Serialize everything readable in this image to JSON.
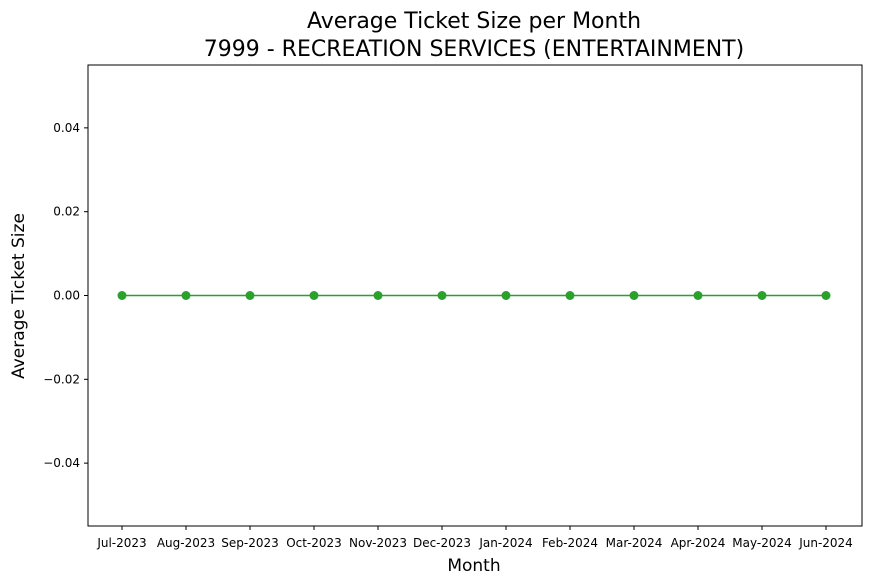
{
  "chart_data": {
    "type": "line",
    "title": "Average Ticket Size per Month",
    "subtitle": "7999 - RECREATION SERVICES (ENTERTAINMENT)",
    "xlabel": "Month",
    "ylabel": "Average Ticket Size",
    "categories": [
      "Jul-2023",
      "Aug-2023",
      "Sep-2023",
      "Oct-2023",
      "Nov-2023",
      "Dec-2023",
      "Jan-2024",
      "Feb-2024",
      "Mar-2024",
      "Apr-2024",
      "May-2024",
      "Jun-2024"
    ],
    "series": [
      {
        "values": [
          0,
          0,
          0,
          0,
          0,
          0,
          0,
          0,
          0,
          0,
          0,
          0
        ],
        "color": "#2ca02c",
        "marker": "circle"
      }
    ],
    "ylim": [
      -0.055,
      0.055
    ],
    "yticks": [
      -0.04,
      -0.02,
      0.0,
      0.02,
      0.04
    ],
    "ytick_labels": [
      "−0.04",
      "−0.02",
      "0.00",
      "0.02",
      "0.04"
    ],
    "grid": false,
    "legend": "none"
  }
}
